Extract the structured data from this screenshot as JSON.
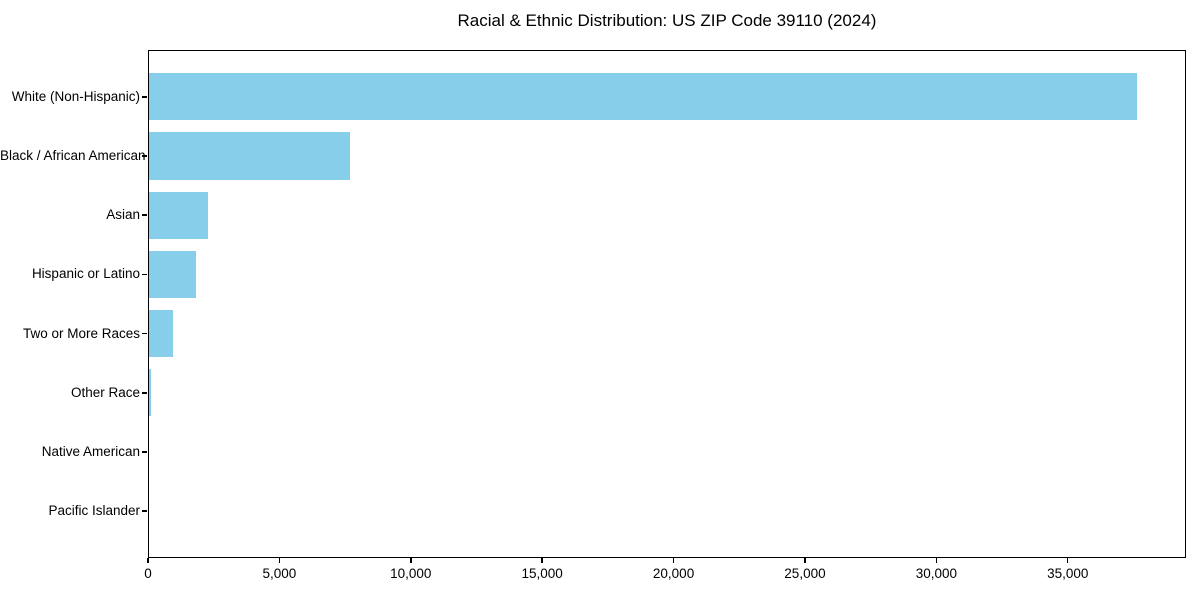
{
  "title": "Racial & Ethnic Distribution: US ZIP Code 39110 (2024)",
  "chart_data": {
    "type": "bar",
    "orientation": "horizontal",
    "title": "Racial & Ethnic Distribution: US ZIP Code 39110 (2024)",
    "categories": [
      "White (Non-Hispanic)",
      "Black / African American",
      "Asian",
      "Hispanic or Latino",
      "Two or More Races",
      "Other Race",
      "Native American",
      "Pacific Islander"
    ],
    "values": [
      37620,
      7700,
      2280,
      1820,
      950,
      110,
      25,
      10
    ],
    "xlabel": "",
    "ylabel": "",
    "xlim": [
      0,
      39500
    ],
    "xticks": [
      0,
      5000,
      10000,
      15000,
      20000,
      25000,
      30000,
      35000
    ],
    "xtick_labels": [
      "0",
      "5,000",
      "10,000",
      "15,000",
      "20,000",
      "25,000",
      "30,000",
      "35,000"
    ],
    "bar_color": "#87CEEB",
    "axis_color": "#000000",
    "text_color": "#000000",
    "background_color": "#ffffff",
    "grid": false,
    "legend": null,
    "bar_height_frac": 0.8
  }
}
